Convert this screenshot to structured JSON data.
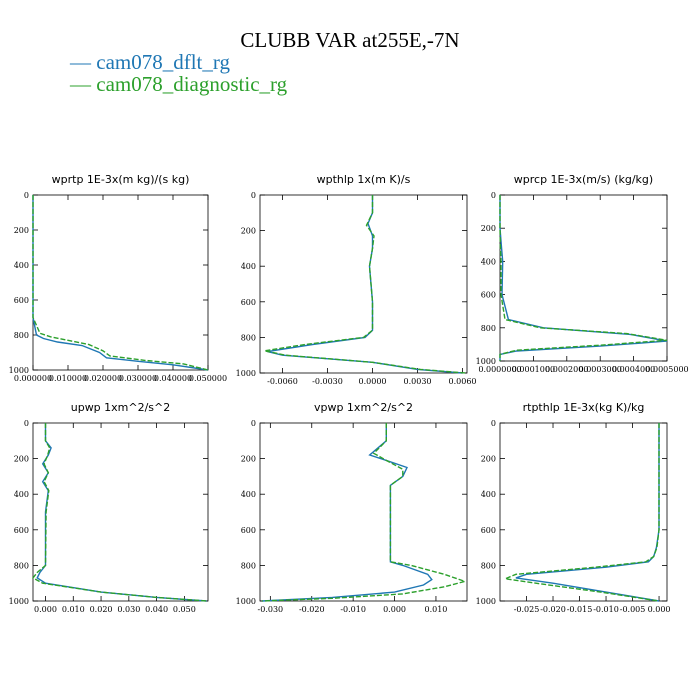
{
  "figure": {
    "title": "CLUBB VAR at255E,-7N",
    "legend": [
      {
        "label": "cam078_dflt_rg",
        "color": "#1f77b4"
      },
      {
        "label": "cam078_diagnostic_rg",
        "color": "#2ca02c"
      }
    ]
  },
  "chart_data": [
    {
      "type": "line",
      "title": "wprtp  1E-3x(m kg)/(s kg)",
      "xlim": [
        0,
        0.05
      ],
      "ylim": [
        1000,
        0
      ],
      "xticks": [
        0,
        0.01,
        0.02,
        0.03,
        0.04,
        0.05
      ],
      "xtick_labels": [
        "0.000000",
        "0.010000",
        "0.020000",
        "0.030000",
        "0.040000",
        "0.050000"
      ],
      "yticks": [
        0,
        200,
        400,
        600,
        800,
        1000
      ],
      "ytick_labels": [
        "0",
        "200",
        "400",
        "600",
        "800",
        "1000"
      ],
      "series": [
        {
          "name": "cam078_dflt_rg",
          "x": [
            0,
            0,
            0.001,
            0.003,
            0.007,
            0.014,
            0.019,
            0.021,
            0.03,
            0.04,
            0.05
          ],
          "y": [
            0,
            700,
            800,
            820,
            840,
            860,
            900,
            930,
            950,
            970,
            1000
          ]
        },
        {
          "name": "cam078_diagnostic_rg",
          "x": [
            0,
            0,
            0.002,
            0.005,
            0.01,
            0.016,
            0.02,
            0.022,
            0.032,
            0.043,
            0.05
          ],
          "y": [
            0,
            700,
            790,
            810,
            830,
            855,
            890,
            920,
            945,
            965,
            1000
          ]
        }
      ]
    },
    {
      "type": "line",
      "title": "wpthlp  1x(m K)/s",
      "xlim": [
        -0.0075,
        0.0063
      ],
      "ylim": [
        1000,
        0
      ],
      "xticks": [
        -0.006,
        -0.003,
        0,
        0.003,
        0.006
      ],
      "xtick_labels": [
        "-0.0060",
        "-0.0030",
        "0.0000",
        "0.0030",
        "0.0060"
      ],
      "yticks": [
        0,
        200,
        400,
        600,
        800,
        1000
      ],
      "ytick_labels": [
        "0",
        "200",
        "400",
        "600",
        "800",
        "1000"
      ],
      "series": [
        {
          "name": "cam078_dflt_rg",
          "x": [
            0,
            0,
            -0.0003,
            0,
            0,
            -0.0002,
            0,
            0,
            -0.0005,
            -0.004,
            -0.007,
            -0.006,
            0,
            0.003,
            0.006
          ],
          "y": [
            0,
            100,
            160,
            230,
            300,
            400,
            600,
            760,
            800,
            840,
            880,
            900,
            940,
            980,
            1000
          ]
        },
        {
          "name": "cam078_diagnostic_rg",
          "x": [
            0,
            0,
            -0.0004,
            0.0001,
            0,
            -0.0002,
            0,
            0,
            -0.0006,
            -0.0045,
            -0.0072,
            -0.0058,
            0,
            0.0032,
            0.0062
          ],
          "y": [
            0,
            100,
            170,
            230,
            300,
            400,
            600,
            760,
            800,
            840,
            875,
            900,
            940,
            980,
            1000
          ]
        }
      ]
    },
    {
      "type": "line",
      "title": "wprcp  1E-3x(m/s) (kg/kg)",
      "xlim": [
        0,
        0.0005
      ],
      "ylim": [
        1000,
        0
      ],
      "xticks": [
        0,
        0.0001,
        0.0002,
        0.0003,
        0.0004,
        0.0005
      ],
      "xtick_labels": [
        "0.0000000",
        "0.0001000",
        "0.0002000",
        "0.0003000",
        "0.0004000",
        "0.0005000"
      ],
      "yticks": [
        0,
        200,
        400,
        600,
        800,
        1000
      ],
      "ytick_labels": [
        "0",
        "200",
        "400",
        "600",
        "800",
        "1000"
      ],
      "series": [
        {
          "name": "cam078_dflt_rg",
          "x": [
            0,
            0,
            4e-06,
            8e-06,
            6e-06,
            2.5e-05,
            0.00013,
            0.00039,
            0.0005,
            0.0003,
            5e-05,
            0,
            0
          ],
          "y": [
            0,
            200,
            300,
            400,
            600,
            750,
            800,
            840,
            880,
            910,
            940,
            960,
            1000
          ]
        },
        {
          "name": "cam078_diagnostic_rg",
          "x": [
            0,
            0,
            1e-06,
            3e-06,
            3e-06,
            1.5e-05,
            0.00012,
            0.00038,
            0.0005,
            0.0003,
            5e-05,
            0,
            0
          ],
          "y": [
            0,
            200,
            300,
            400,
            600,
            750,
            800,
            835,
            875,
            905,
            935,
            960,
            1000
          ]
        }
      ]
    },
    {
      "type": "line",
      "title": "upwp  1xm^2/s^2",
      "xlim": [
        -0.0045,
        0.0585
      ],
      "ylim": [
        1000,
        0
      ],
      "xticks": [
        0,
        0.01,
        0.02,
        0.03,
        0.04,
        0.05
      ],
      "xtick_labels": [
        "0.000",
        "0.010",
        "0.020",
        "0.030",
        "0.040",
        "0.050"
      ],
      "yticks": [
        0,
        200,
        400,
        600,
        800,
        1000
      ],
      "ytick_labels": [
        "0",
        "200",
        "400",
        "600",
        "800",
        "1000"
      ],
      "series": [
        {
          "name": "cam078_dflt_rg",
          "x": [
            0,
            0,
            0.002,
            0.001,
            -0.001,
            0.001,
            -0.001,
            0.001,
            0,
            0,
            -0.002,
            -0.003,
            0,
            0.02,
            0.04,
            0.058
          ],
          "y": [
            0,
            100,
            140,
            180,
            230,
            280,
            330,
            380,
            500,
            800,
            840,
            870,
            900,
            950,
            980,
            1000
          ]
        },
        {
          "name": "cam078_diagnostic_rg",
          "x": [
            0,
            0,
            0.0015,
            0.0008,
            -0.0005,
            0.001,
            -0.0005,
            0.0012,
            0.0002,
            0,
            -0.003,
            -0.0045,
            -0.001,
            0.02,
            0.04,
            0.058
          ],
          "y": [
            0,
            100,
            140,
            180,
            230,
            280,
            330,
            380,
            500,
            800,
            840,
            870,
            900,
            950,
            980,
            1000
          ]
        }
      ]
    },
    {
      "type": "line",
      "title": "vpwp  1xm^2/s^2",
      "xlim": [
        -0.0325,
        0.0175
      ],
      "ylim": [
        1000,
        0
      ],
      "xticks": [
        -0.03,
        -0.02,
        -0.01,
        0,
        0.01
      ],
      "xtick_labels": [
        "-0.030",
        "-0.020",
        "-0.010",
        "0.000",
        "0.010"
      ],
      "yticks": [
        0,
        200,
        400,
        600,
        800,
        1000
      ],
      "ytick_labels": [
        "0",
        "200",
        "400",
        "600",
        "800",
        "1000"
      ],
      "series": [
        {
          "name": "cam078_dflt_rg",
          "x": [
            -0.002,
            -0.002,
            -0.006,
            -0.002,
            0.003,
            0.002,
            -0.001,
            -0.001,
            0.002,
            0.008,
            0.009,
            0.007,
            0,
            -0.015,
            -0.032
          ],
          "y": [
            0,
            100,
            180,
            210,
            250,
            300,
            350,
            780,
            800,
            850,
            880,
            910,
            950,
            980,
            1000
          ]
        },
        {
          "name": "cam078_diagnostic_rg",
          "x": [
            -0.002,
            -0.002,
            -0.005,
            -0.002,
            0.002,
            0.002,
            -0.001,
            -0.001,
            0.004,
            0.012,
            0.017,
            0.012,
            0.002,
            -0.015,
            -0.032
          ],
          "y": [
            0,
            100,
            170,
            210,
            260,
            300,
            350,
            780,
            800,
            850,
            890,
            920,
            960,
            985,
            1000
          ]
        }
      ]
    },
    {
      "type": "line",
      "title": "rtpthlp  1E-3x(kg K)/kg",
      "xlim": [
        -0.03,
        0.0015
      ],
      "ylim": [
        1000,
        0
      ],
      "xticks": [
        -0.025,
        -0.02,
        -0.015,
        -0.01,
        -0.005,
        0
      ],
      "xtick_labels": [
        "-0.025",
        "-0.020",
        "-0.015",
        "-0.010",
        "-0.005",
        "0.000"
      ],
      "yticks": [
        0,
        200,
        400,
        600,
        800,
        1000
      ],
      "ytick_labels": [
        "0",
        "200",
        "400",
        "600",
        "800",
        "1000"
      ],
      "series": [
        {
          "name": "cam078_dflt_rg",
          "x": [
            0,
            0,
            -0.0005,
            -0.001,
            -0.002,
            -0.01,
            -0.025,
            -0.027,
            -0.02,
            -0.01,
            0
          ],
          "y": [
            0,
            600,
            700,
            750,
            780,
            810,
            850,
            870,
            900,
            950,
            1000
          ]
        },
        {
          "name": "cam078_diagnostic_rg",
          "x": [
            0,
            0,
            -0.0004,
            -0.001,
            -0.0025,
            -0.012,
            -0.027,
            -0.029,
            -0.022,
            -0.011,
            0
          ],
          "y": [
            0,
            600,
            700,
            750,
            780,
            810,
            850,
            875,
            905,
            950,
            1000
          ]
        }
      ]
    }
  ]
}
